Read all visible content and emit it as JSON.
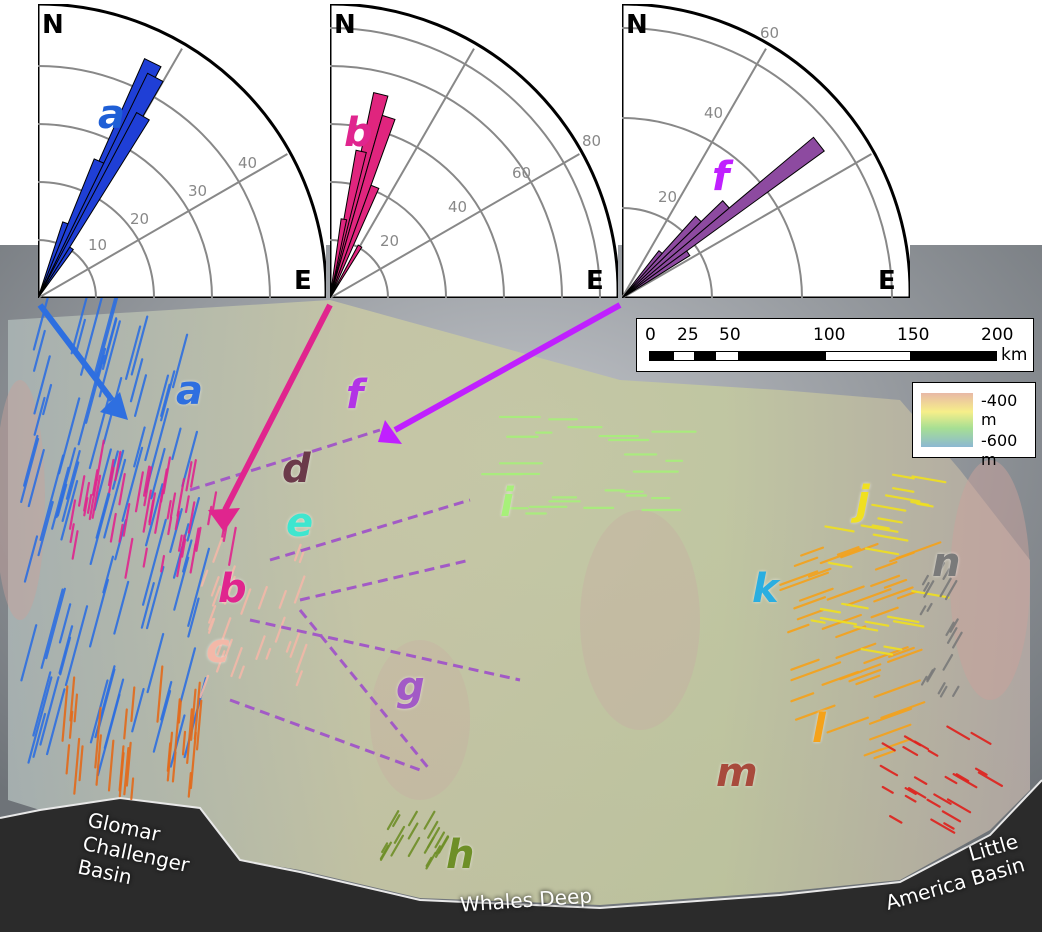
{
  "rose_diagrams": [
    {
      "id": "a",
      "label": "a",
      "color": "#1f3fd6",
      "north": "N",
      "east": "E",
      "ring_labels": [
        "10",
        "20",
        "30",
        "40"
      ]
    },
    {
      "id": "b",
      "label": "b",
      "color": "#e0257e",
      "north": "N",
      "east": "E",
      "ring_labels": [
        "20",
        "40",
        "60",
        "80"
      ]
    },
    {
      "id": "f",
      "label": "f",
      "color": "#8d4aa0",
      "north": "N",
      "east": "E",
      "ring_labels": [
        "20",
        "40",
        "60"
      ]
    }
  ],
  "rose_label_colors": {
    "a": "#1f5fd6",
    "b": "#e0258e",
    "f": "#c020ff"
  },
  "map_units": [
    {
      "label": "a",
      "color": "#2e6fe0"
    },
    {
      "label": "b",
      "color": "#e0258e"
    },
    {
      "label": "c",
      "color": "#f3b8a8"
    },
    {
      "label": "d",
      "color": "#6b3a4a"
    },
    {
      "label": "e",
      "color": "#3ee6cf"
    },
    {
      "label": "f",
      "color": "#b233e6"
    },
    {
      "label": "g",
      "color": "#a25ac6"
    },
    {
      "label": "h",
      "color": "#6e8f27"
    },
    {
      "label": "i",
      "color": "#a7f07a"
    },
    {
      "label": "j",
      "color": "#f0e020"
    },
    {
      "label": "k",
      "color": "#2aaee0"
    },
    {
      "label": "l",
      "color": "#f5a21a"
    },
    {
      "label": "m",
      "color": "#a84a3c"
    },
    {
      "label": "n",
      "color": "#7a7a7a"
    }
  ],
  "basins": {
    "glomar": "Glomar\nChallenger\nBasin",
    "whales": "Whales Deep",
    "little_america": "Little\nAmerica Basin"
  },
  "scale_bar": {
    "ticks": [
      "0",
      "25",
      "50",
      "100",
      "150",
      "200"
    ],
    "unit": "km"
  },
  "depth_legend": {
    "top": "-400 m",
    "bottom": "-600 m"
  },
  "colors": {
    "shelf": "#c9c59d",
    "land": "#2b2b2b",
    "hillshade": "#9aa0a6"
  }
}
